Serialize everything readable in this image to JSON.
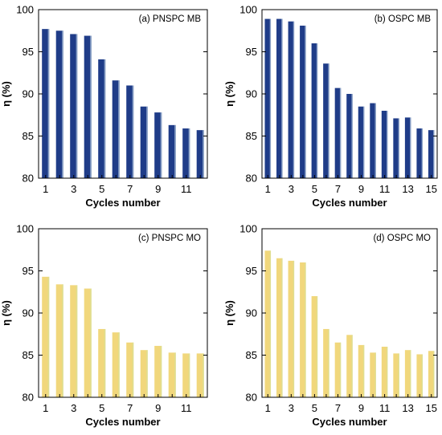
{
  "colors": {
    "mb_bar": "#1f3c88",
    "mb_bar_highlight": "#dff1f7",
    "mo_bar": "#f1d77c",
    "mo_bar_highlight": "#cfe3a0",
    "axis": "#000000"
  },
  "chart_data": [
    {
      "type": "bar",
      "title": "(a)  PNSPC MB",
      "xlabel": "Cycles number",
      "ylabel": "η (%)",
      "ylim": [
        80,
        100
      ],
      "yticks": [
        "80",
        "85",
        "90",
        "95",
        "100"
      ],
      "xtick_labels": [
        "1",
        "3",
        "5",
        "7",
        "9",
        "11"
      ],
      "categories": [
        "1",
        "2",
        "3",
        "4",
        "5",
        "6",
        "7",
        "8",
        "9",
        "10",
        "11",
        "12"
      ],
      "values": [
        97.7,
        97.5,
        97.1,
        96.9,
        94.1,
        91.6,
        91.0,
        88.5,
        87.8,
        86.3,
        85.9,
        85.7
      ],
      "color_key": "mb"
    },
    {
      "type": "bar",
      "title": "(b) OSPC MB",
      "xlabel": "Cycles number",
      "ylabel": "η (%)",
      "ylim": [
        80,
        100
      ],
      "yticks": [
        "80",
        "85",
        "90",
        "95",
        "100"
      ],
      "xtick_labels": [
        "1",
        "3",
        "5",
        "7",
        "9",
        "11",
        "13",
        "15"
      ],
      "categories": [
        "1",
        "2",
        "3",
        "4",
        "5",
        "6",
        "7",
        "8",
        "9",
        "10",
        "11",
        "12",
        "13",
        "14",
        "15"
      ],
      "values": [
        98.9,
        98.9,
        98.6,
        98.1,
        96.0,
        93.6,
        90.7,
        90.0,
        88.5,
        88.9,
        88.0,
        87.1,
        87.2,
        85.9,
        85.7
      ],
      "color_key": "mb"
    },
    {
      "type": "bar",
      "title": "(c) PNSPC MO",
      "xlabel": "Cycles number",
      "ylabel": "η (%)",
      "ylim": [
        80,
        100
      ],
      "yticks": [
        "80",
        "85",
        "90",
        "95",
        "100"
      ],
      "xtick_labels": [
        "1",
        "3",
        "5",
        "7",
        "9",
        "11"
      ],
      "categories": [
        "1",
        "2",
        "3",
        "4",
        "5",
        "6",
        "7",
        "8",
        "9",
        "10",
        "11",
        "12"
      ],
      "values": [
        94.3,
        93.4,
        93.3,
        92.9,
        88.1,
        87.7,
        86.5,
        85.6,
        86.1,
        85.3,
        85.2,
        85.2
      ],
      "color_key": "mo"
    },
    {
      "type": "bar",
      "title": "(d) OSPC MO",
      "xlabel": "Cycles number",
      "ylabel": "η (%)",
      "ylim": [
        80,
        100
      ],
      "yticks": [
        "80",
        "85",
        "90",
        "95",
        "100"
      ],
      "xtick_labels": [
        "1",
        "3",
        "5",
        "7",
        "9",
        "11",
        "13",
        "15"
      ],
      "categories": [
        "1",
        "2",
        "3",
        "4",
        "5",
        "6",
        "7",
        "8",
        "9",
        "10",
        "11",
        "12",
        "13",
        "14",
        "15"
      ],
      "values": [
        97.4,
        96.5,
        96.2,
        96.0,
        92.0,
        88.1,
        86.5,
        87.4,
        86.2,
        85.3,
        86.0,
        85.2,
        85.6,
        85.1,
        85.5
      ],
      "color_key": "mo"
    }
  ]
}
